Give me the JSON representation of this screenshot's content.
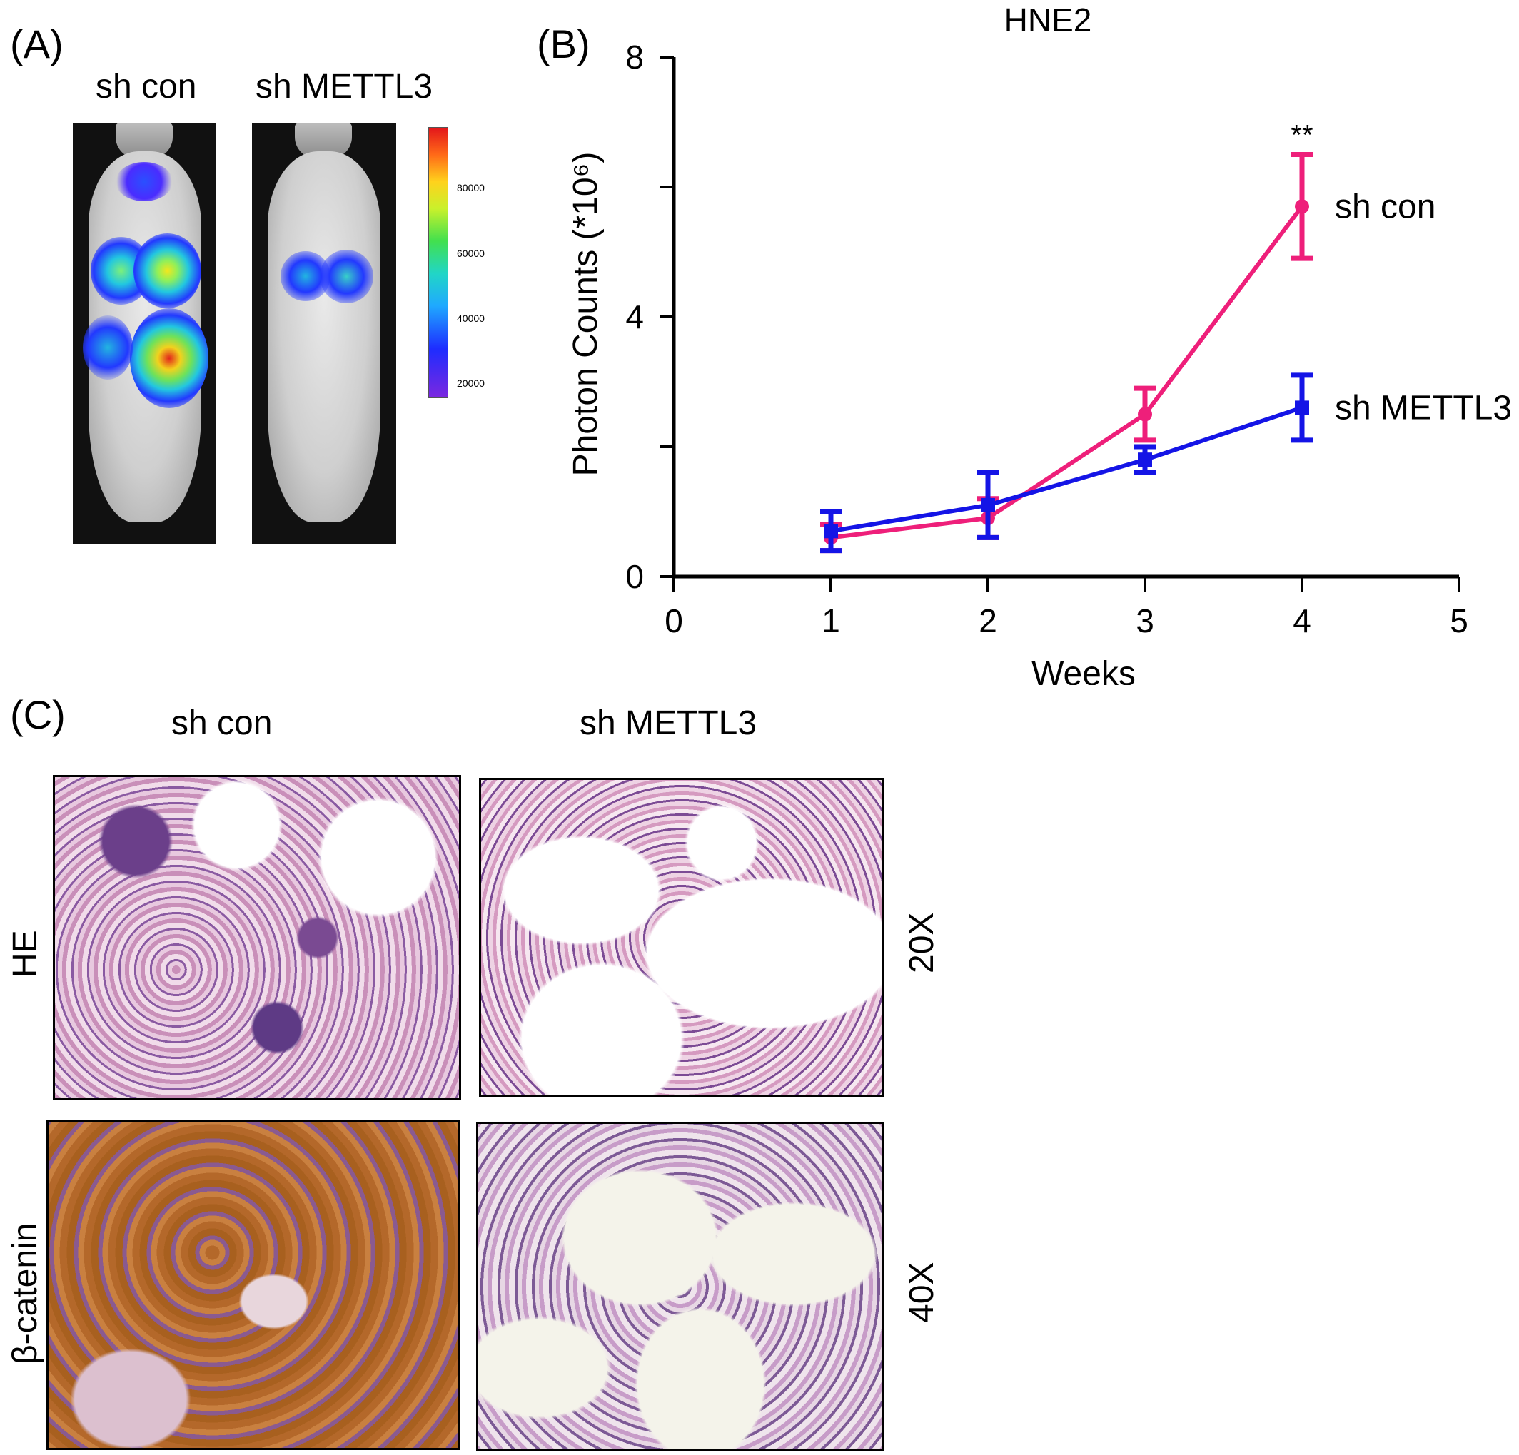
{
  "panels": {
    "a": {
      "letter": "(A)",
      "left_label": "sh con",
      "right_label": "sh METTL3",
      "colorbar_ticks": [
        "80000",
        "60000",
        "40000",
        "20000"
      ]
    },
    "b": {
      "letter": "(B)"
    },
    "c": {
      "letter": "(C)",
      "col_left": "sh con",
      "col_right": "sh METTL3",
      "row_top": "HE",
      "row_bottom": "β-catenin",
      "mag_top": "20X",
      "mag_bottom": "40X"
    }
  },
  "chart_data": {
    "type": "line",
    "title": "HNE2",
    "xlabel": "Weeks",
    "ylabel": "Photon Counts (*10⁶)",
    "xlim": [
      0,
      5
    ],
    "ylim": [
      0,
      8
    ],
    "xticks": [
      "0",
      "1",
      "2",
      "3",
      "4",
      "5"
    ],
    "yticks": [
      "0",
      "4",
      "8"
    ],
    "x": [
      1,
      2,
      3,
      4
    ],
    "series": [
      {
        "name": "sh con",
        "color": "#ee1f7a",
        "marker": "circle",
        "values": [
          0.6,
          0.9,
          2.5,
          5.7
        ],
        "err": [
          0.2,
          0.3,
          0.4,
          0.8
        ]
      },
      {
        "name": "sh METTL3",
        "color": "#1414e6",
        "marker": "square",
        "values": [
          0.7,
          1.1,
          1.8,
          2.6
        ],
        "err": [
          0.3,
          0.5,
          0.2,
          0.5
        ]
      }
    ],
    "annotation": "**",
    "grid": false
  }
}
